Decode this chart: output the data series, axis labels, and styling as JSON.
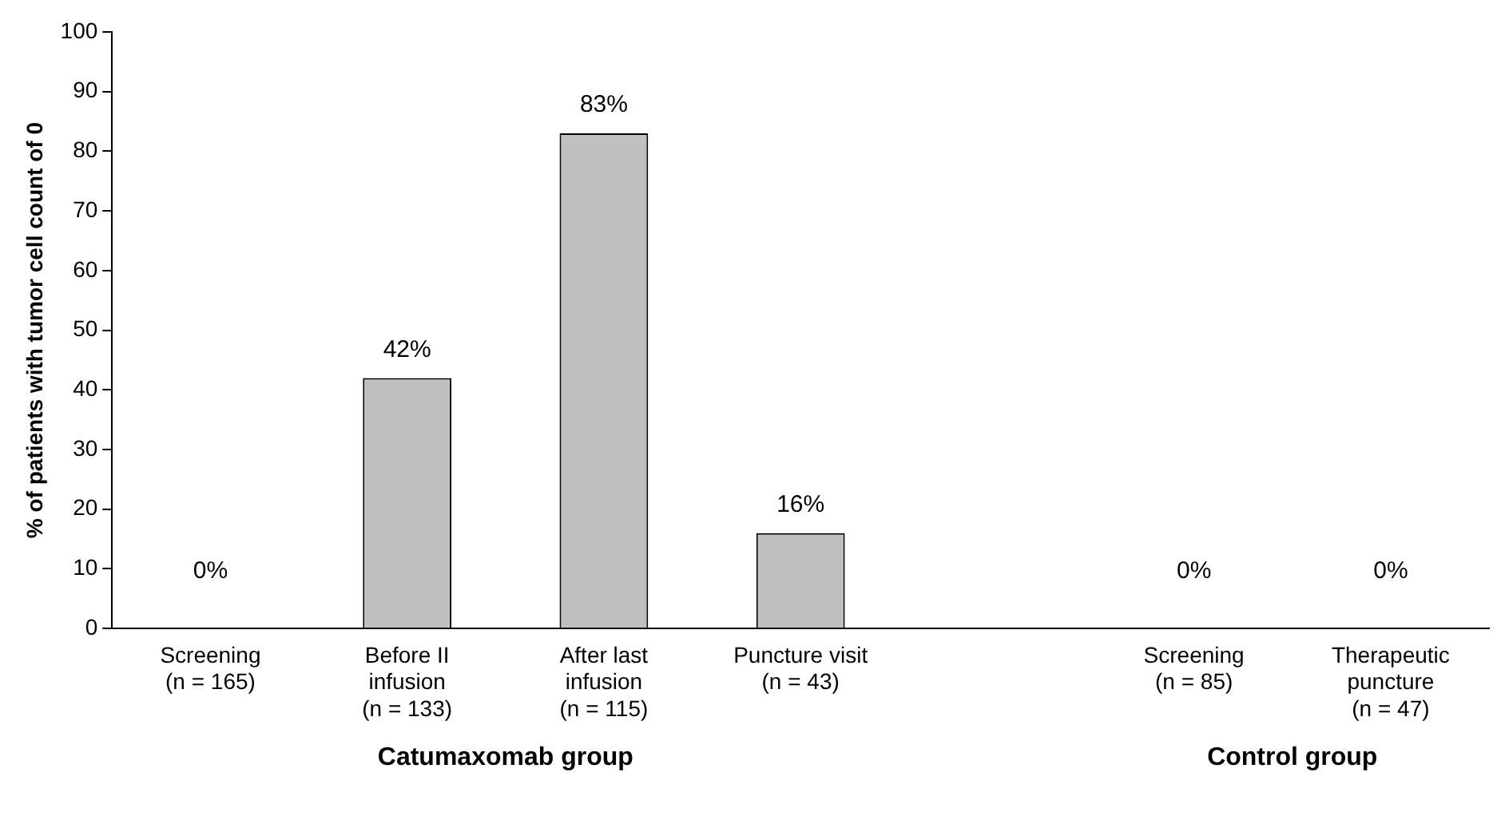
{
  "chart_data": {
    "type": "bar",
    "ylabel": "% of patients with tumor cell count of 0",
    "categories": [
      "Screening\n(n = 165)",
      "Before II\ninfusion\n(n = 133)",
      "After last\ninfusion\n(n = 115)",
      "Puncture visit\n(n = 43)",
      null,
      "Screening\n(n = 85)",
      "Therapeutic\npuncture\n(n = 47)"
    ],
    "values": [
      0,
      42,
      83,
      16,
      null,
      0,
      0
    ],
    "value_labels": [
      "0%",
      "42%",
      "83%",
      "16%",
      null,
      "0%",
      "0%"
    ],
    "color": "#c0c0c0",
    "ylim": [
      0,
      100
    ],
    "yticks": [
      0,
      10,
      20,
      30,
      40,
      50,
      60,
      70,
      80,
      90,
      100
    ],
    "grid": false,
    "legend": false,
    "annotations": [
      "Catumaxomab group",
      "Control group"
    ]
  }
}
